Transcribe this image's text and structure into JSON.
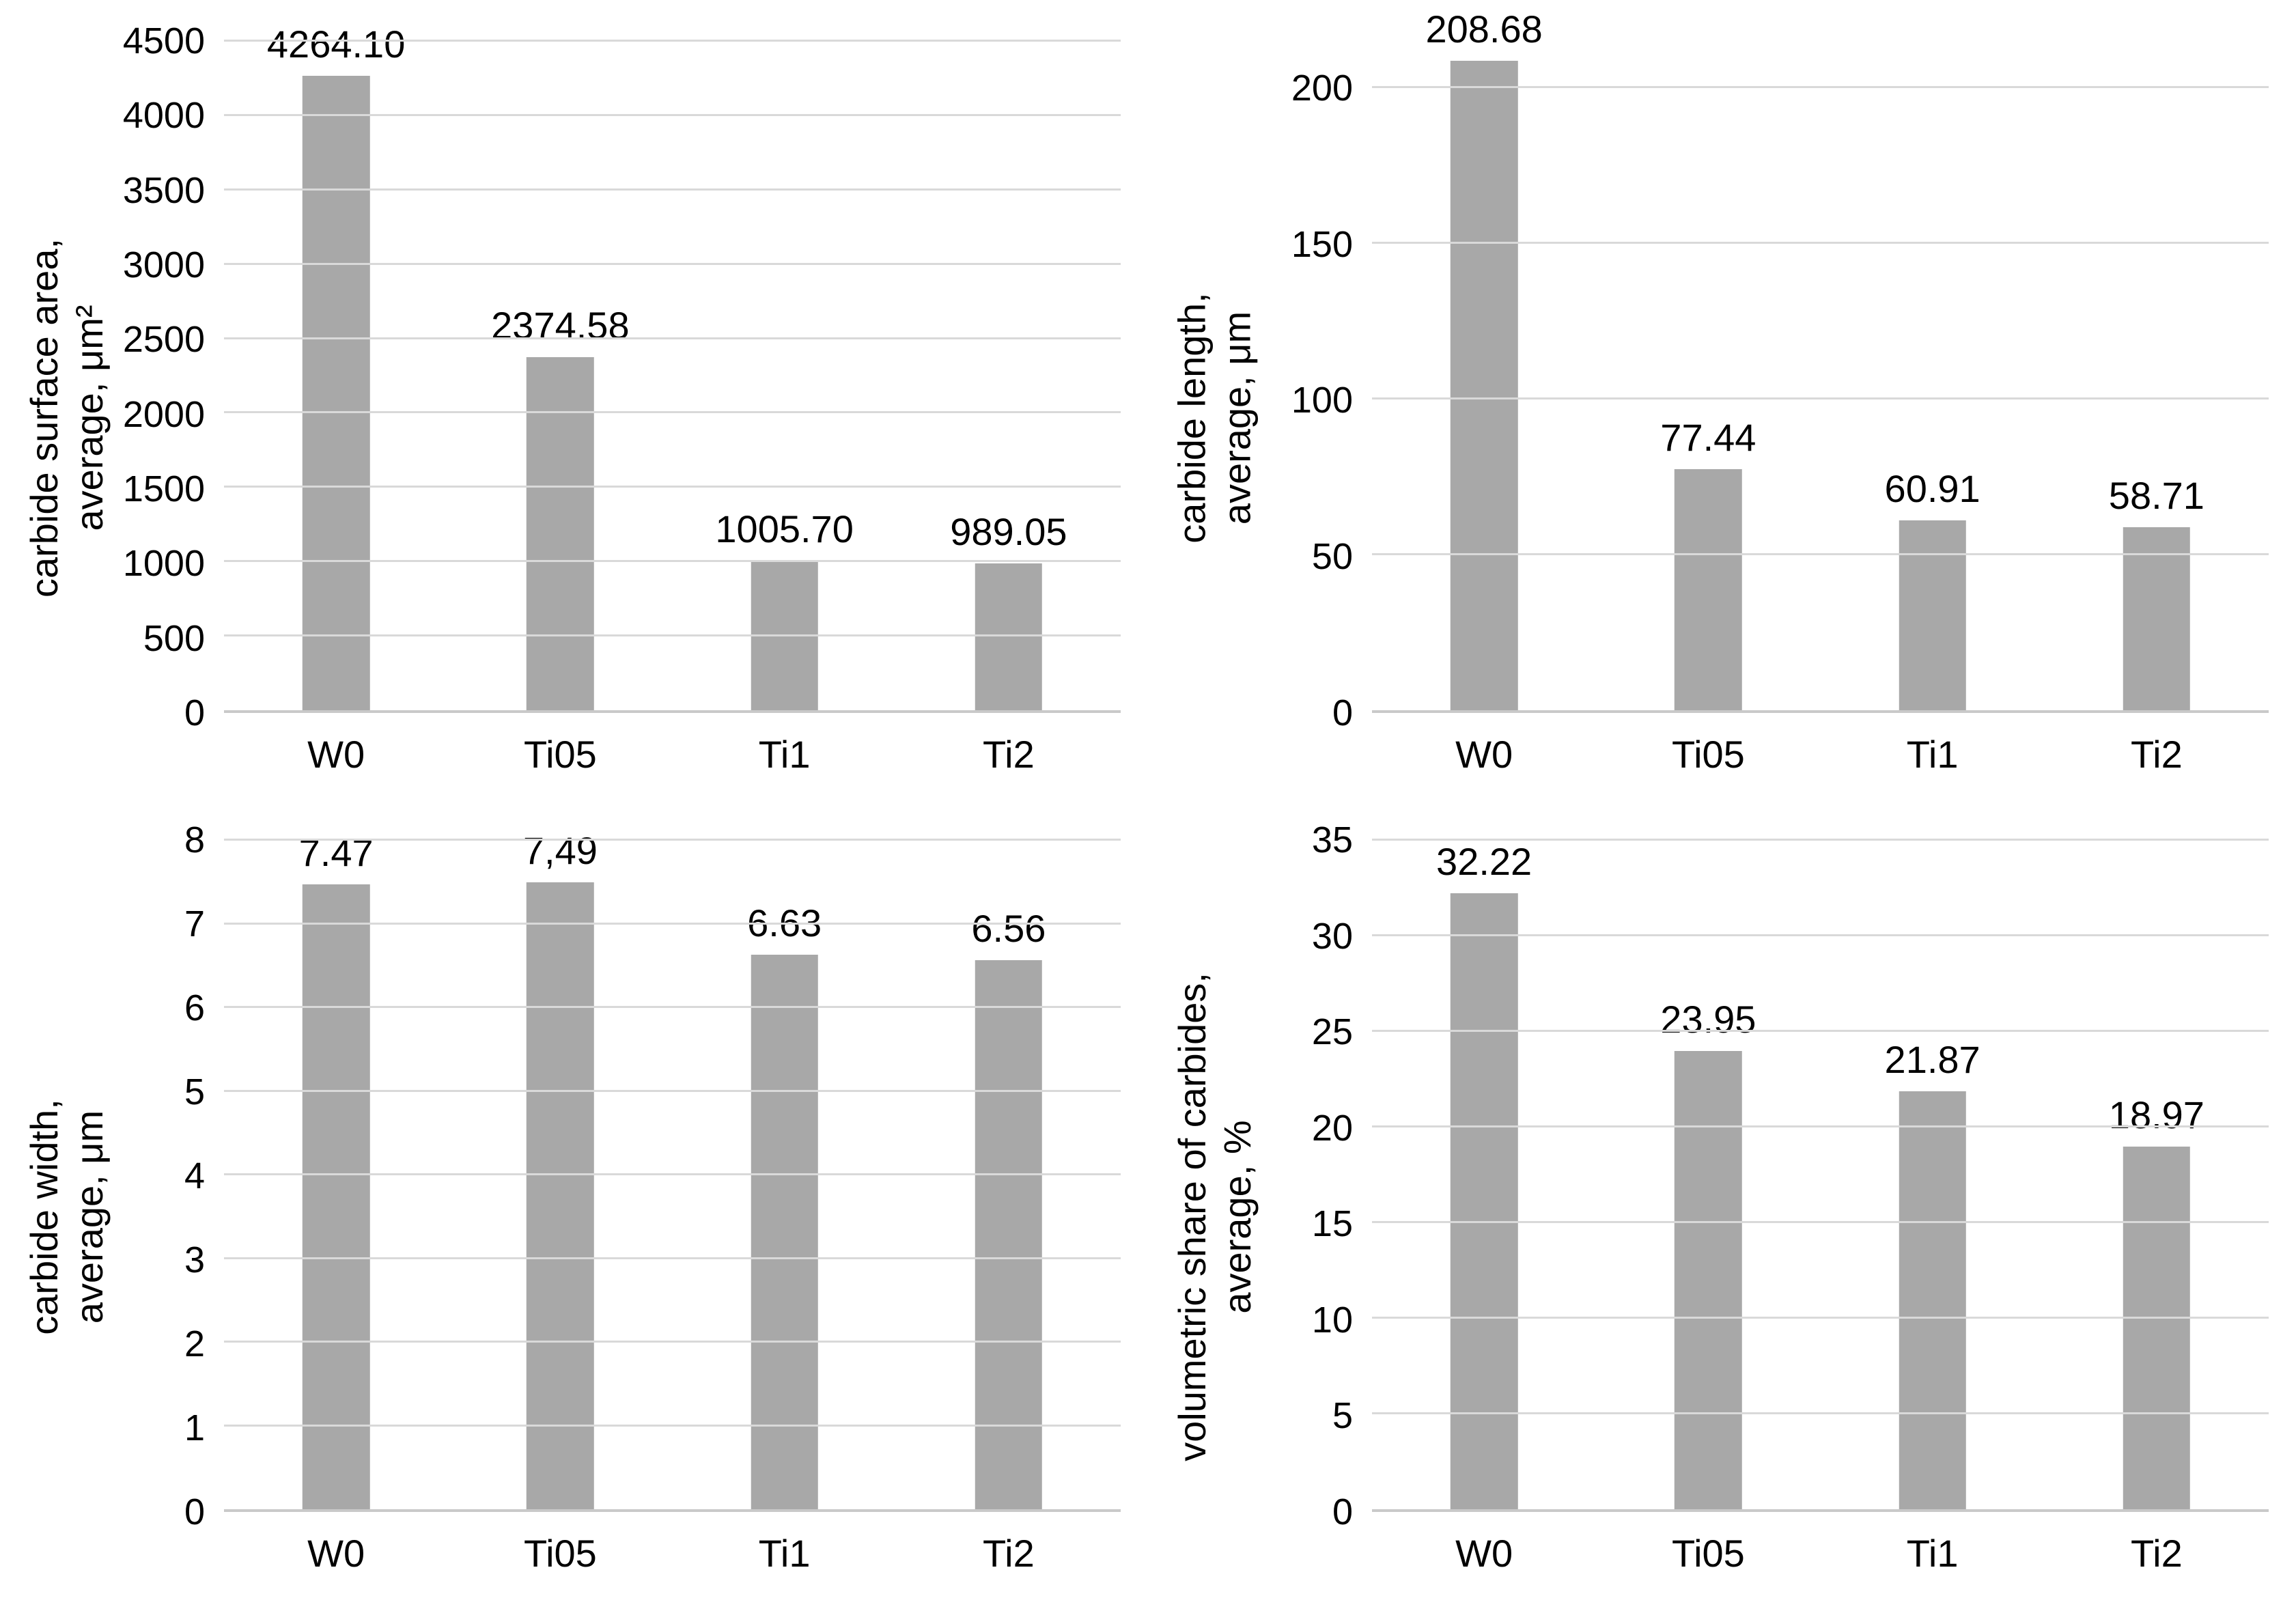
{
  "page": {
    "background": "#ffffff"
  },
  "colors": {
    "bar": "#a8a8a8",
    "gridline": "#d9d9d9",
    "axis_line": "#c9c9c9",
    "text": "#000000"
  },
  "chart_data": [
    {
      "id": "carbide-surface-area",
      "type": "bar",
      "title": "",
      "ylabel_lines": [
        "carbide surface area,",
        "average, μm²"
      ],
      "categories": [
        "W0",
        "Ti05",
        "Ti1",
        "Ti2"
      ],
      "values": [
        4264.1,
        2374.58,
        1005.7,
        989.05
      ],
      "labels": [
        "4264.10",
        "2374.58",
        "1005.70",
        "989.05"
      ],
      "yticks": [
        0,
        500,
        1000,
        1500,
        2000,
        2500,
        3000,
        3500,
        4000,
        4500
      ],
      "ylim": [
        0,
        4500
      ],
      "xlabel": "",
      "grid": true,
      "legend": "none"
    },
    {
      "id": "carbide-length",
      "type": "bar",
      "title": "",
      "ylabel_lines": [
        "carbide length,",
        "average, μm"
      ],
      "categories": [
        "W0",
        "Ti05",
        "Ti1",
        "Ti2"
      ],
      "values": [
        208.68,
        77.44,
        60.91,
        58.71
      ],
      "labels": [
        "208.68",
        "77.44",
        "60.91",
        "58.71"
      ],
      "yticks": [
        0,
        50,
        100,
        150,
        200
      ],
      "ylim": [
        0,
        215
      ],
      "xlabel": "",
      "grid": true,
      "legend": "none"
    },
    {
      "id": "carbide-width",
      "type": "bar",
      "title": "",
      "ylabel_lines": [
        "carbide width,",
        "average, μm"
      ],
      "categories": [
        "W0",
        "Ti05",
        "Ti1",
        "Ti2"
      ],
      "values": [
        7.47,
        7.49,
        6.63,
        6.56
      ],
      "labels": [
        "7.47",
        "7,49",
        "6.63",
        "6.56"
      ],
      "yticks": [
        0,
        1,
        2,
        3,
        4,
        5,
        6,
        7,
        8
      ],
      "ylim": [
        0,
        8
      ],
      "xlabel": "",
      "grid": true,
      "legend": "none"
    },
    {
      "id": "volumetric-share-of-carbides",
      "type": "bar",
      "title": "",
      "ylabel_lines": [
        "volumetric share of carbides,",
        "average, %"
      ],
      "categories": [
        "W0",
        "Ti05",
        "Ti1",
        "Ti2"
      ],
      "values": [
        32.22,
        23.95,
        21.87,
        18.97
      ],
      "labels": [
        "32.22",
        "23.95",
        "21.87",
        "18.97"
      ],
      "yticks": [
        0,
        5,
        10,
        15,
        20,
        25,
        30,
        35
      ],
      "ylim": [
        0,
        35
      ],
      "xlabel": "",
      "grid": true,
      "legend": "none"
    }
  ]
}
